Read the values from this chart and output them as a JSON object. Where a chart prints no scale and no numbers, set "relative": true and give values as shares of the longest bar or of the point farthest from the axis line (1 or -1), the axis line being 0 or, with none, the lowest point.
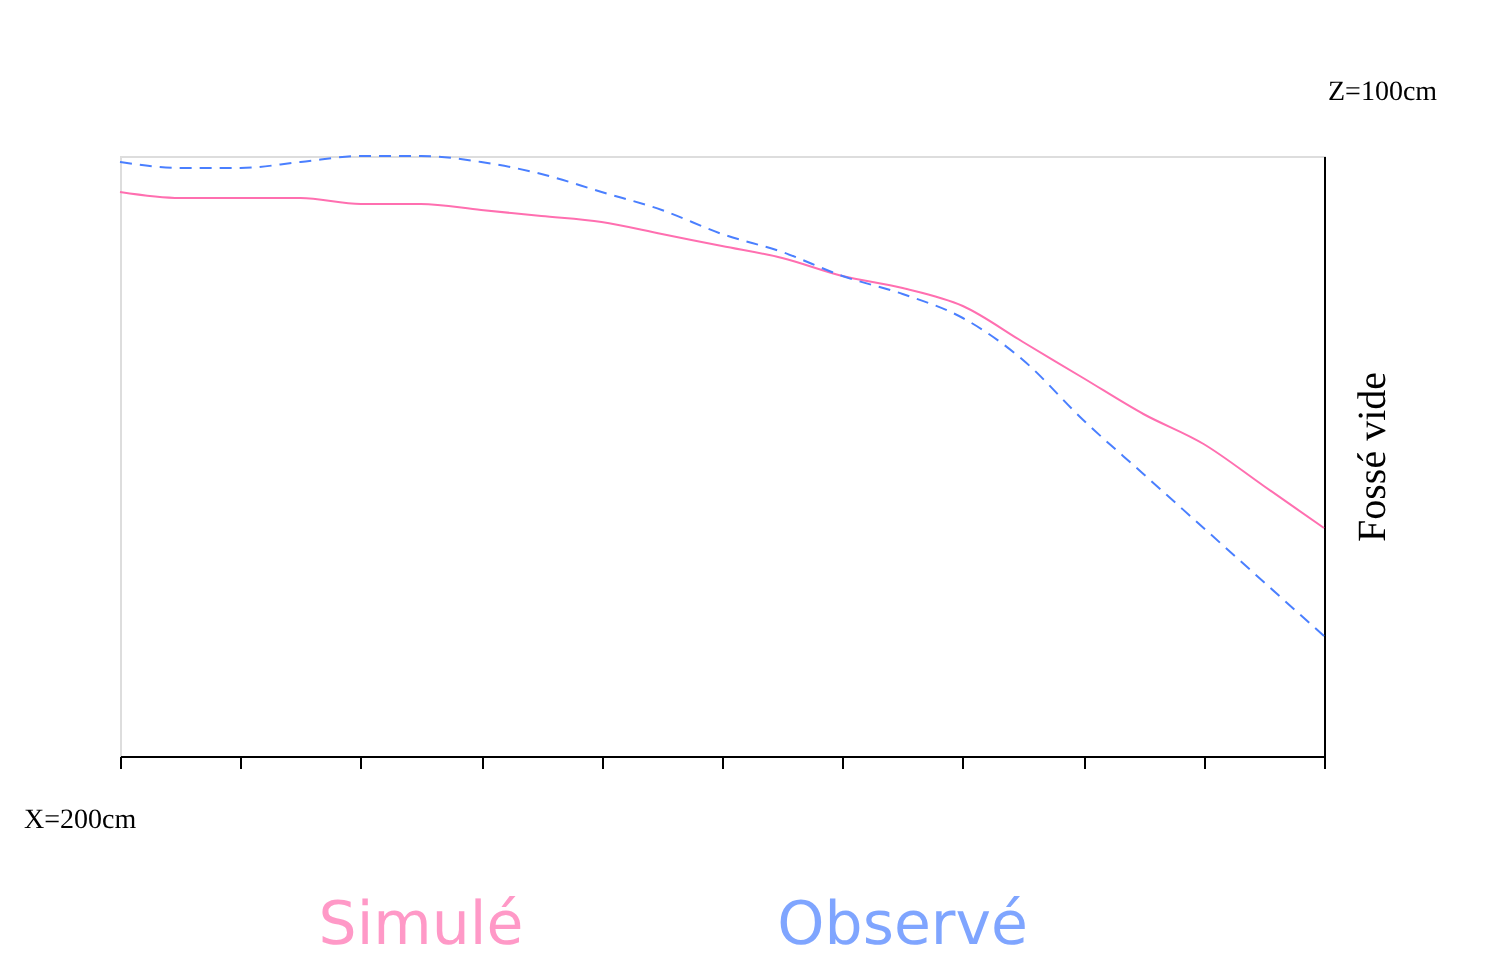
{
  "chart_data": {
    "type": "line",
    "ylabel": "Fossé vide",
    "relative": true,
    "categories": [
      null,
      null,
      null,
      null,
      null,
      null,
      null,
      null,
      null,
      null,
      null,
      null,
      null,
      null,
      null,
      null,
      null,
      null,
      null,
      null,
      null
    ],
    "annotations": [
      "X=200cm",
      "Z=100cm"
    ],
    "grid": false,
    "legend": "bottom",
    "series": [
      {
        "name": "Simulé",
        "color": "#ff6fb0",
        "line_style": "solid",
        "values": [
          0.94,
          0.93,
          0.93,
          0.93,
          0.92,
          0.92,
          0.91,
          0.9,
          0.89,
          0.87,
          0.85,
          0.83,
          0.8,
          0.78,
          0.75,
          0.69,
          0.63,
          0.57,
          0.52,
          0.45,
          0.38
        ]
      },
      {
        "name": "Observé",
        "color": "#4a7fff",
        "line_style": "dashed",
        "values": [
          0.99,
          0.98,
          0.98,
          0.99,
          1,
          1,
          0.99,
          0.97,
          0.94,
          0.91,
          0.87,
          0.84,
          0.8,
          0.77,
          0.73,
          0.66,
          0.56,
          0.47,
          0.38,
          0.29,
          0.2
        ]
      }
    ]
  }
}
